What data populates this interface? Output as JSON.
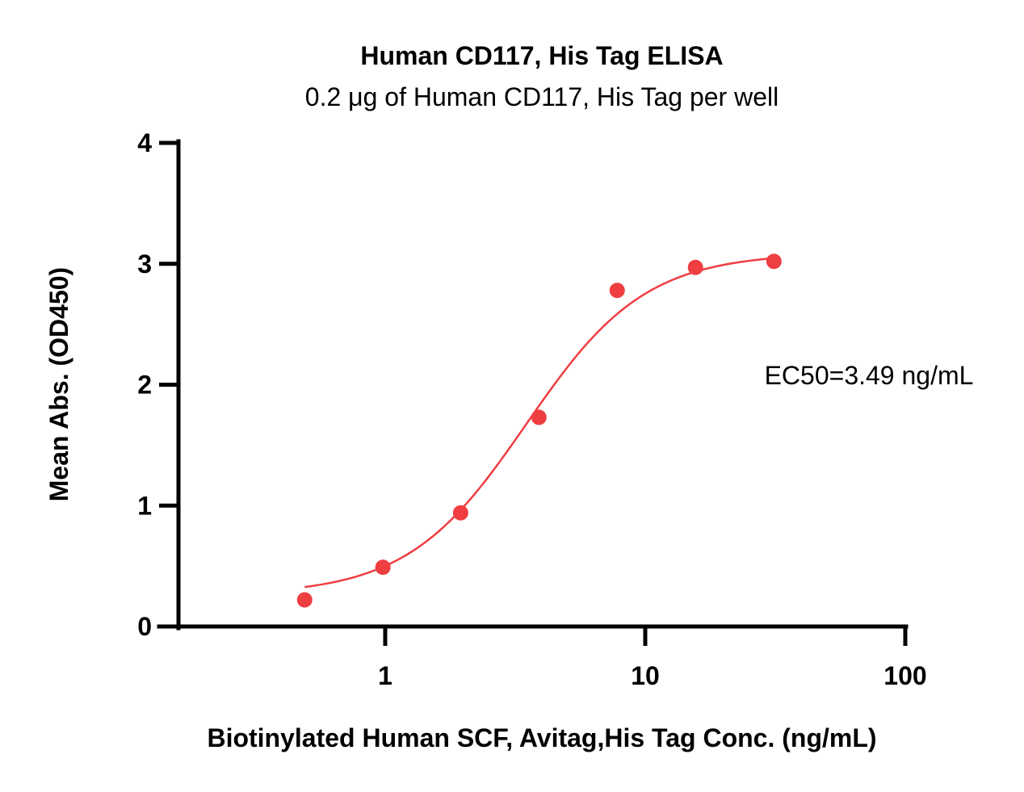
{
  "chart_data": {
    "type": "scatter",
    "title": "Human CD117, His Tag ELISA",
    "subtitle": "0.2 μg of Human CD117, His Tag per well",
    "xlabel": "Biotinylated Human SCF, Avitag,His Tag Conc. (ng/mL)",
    "ylabel": "Mean Abs. (OD450)",
    "x_scale": "log",
    "xlim": [
      0.18,
      100
    ],
    "ylim": [
      0,
      4
    ],
    "x_ticks": [
      1,
      10,
      100
    ],
    "x_tick_labels": [
      "1",
      "10",
      "100"
    ],
    "y_ticks": [
      0,
      1,
      2,
      3,
      4
    ],
    "y_tick_labels": [
      "0",
      "1",
      "2",
      "3",
      "4"
    ],
    "grid": false,
    "series": [
      {
        "color": "#ef3e42",
        "points": [
          {
            "x": 0.49,
            "y": 0.22
          },
          {
            "x": 0.98,
            "y": 0.49
          },
          {
            "x": 1.95,
            "y": 0.94
          },
          {
            "x": 3.9,
            "y": 1.73
          },
          {
            "x": 7.8,
            "y": 2.78
          },
          {
            "x": 15.6,
            "y": 2.97
          },
          {
            "x": 31.25,
            "y": 3.02
          }
        ],
        "fit": {
          "model": "4PL",
          "bottom": 0.26,
          "top": 3.09,
          "ec50": 3.49,
          "hill": 1.9,
          "x_range": [
            0.49,
            31.25
          ]
        }
      }
    ],
    "annotations": [
      {
        "text": "EC50=3.49 ng/mL"
      }
    ]
  }
}
